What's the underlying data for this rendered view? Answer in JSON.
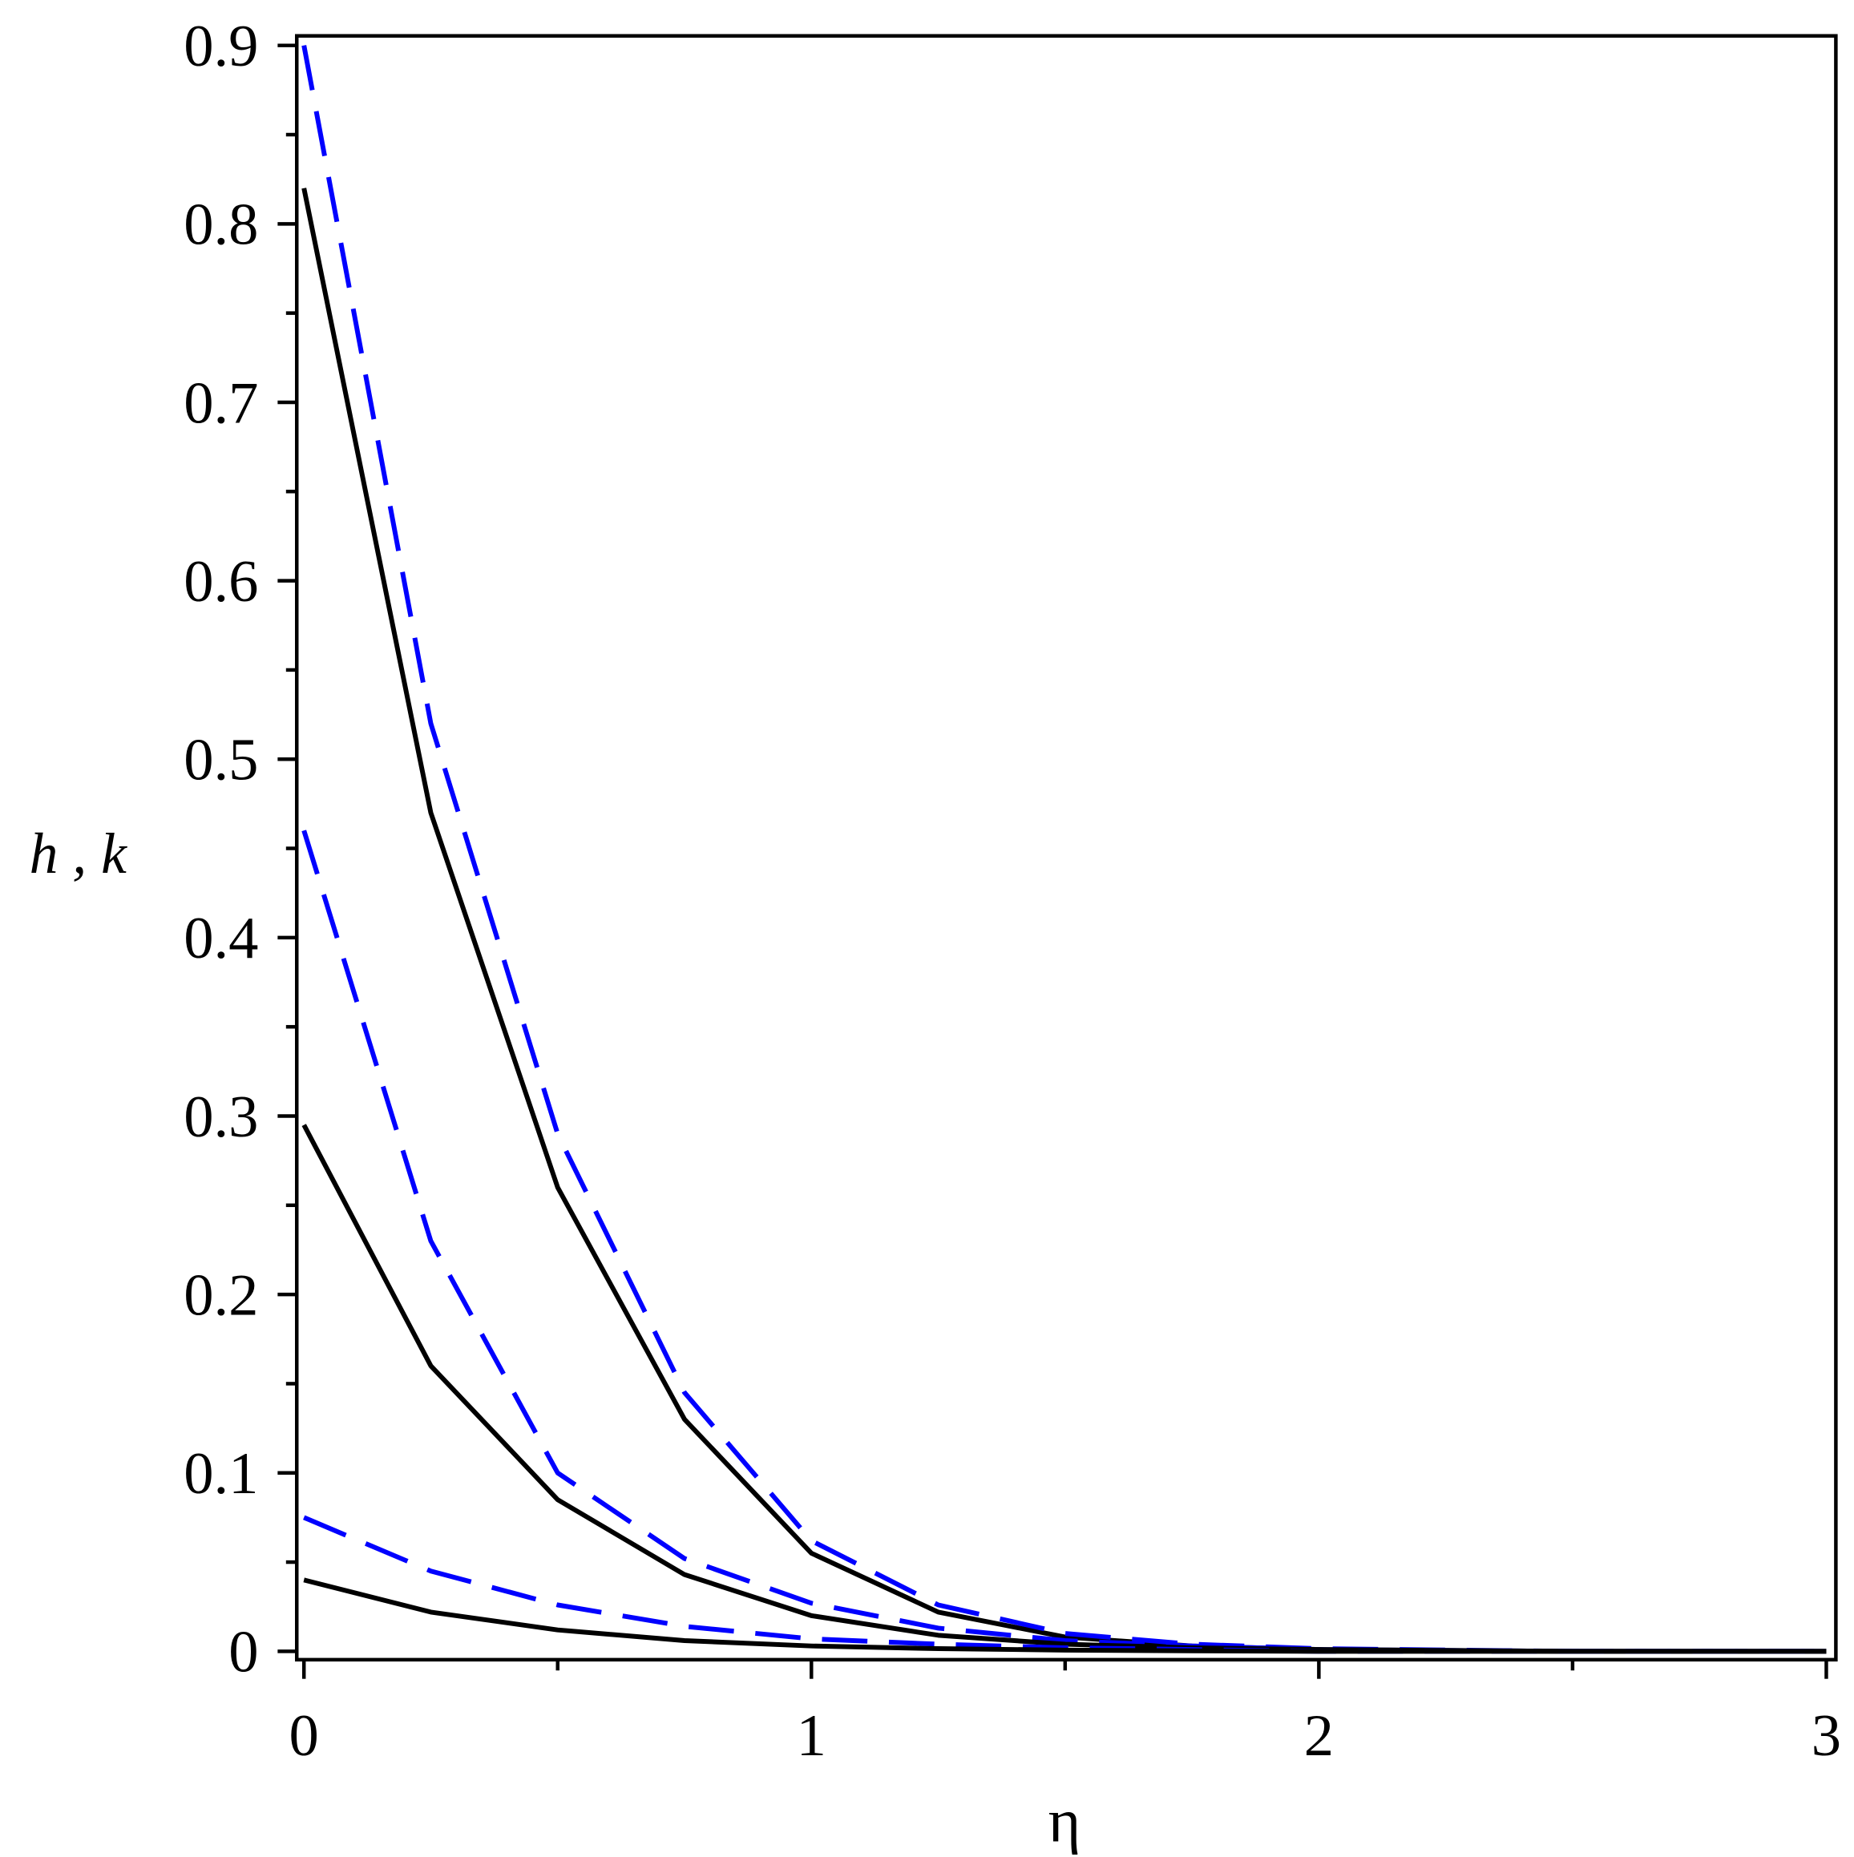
{
  "chart_data": {
    "type": "line",
    "x_label": "η",
    "y_label": "h , k",
    "x": [
      0,
      0.25,
      0.5,
      0.75,
      1,
      1.25,
      1.5,
      1.75,
      2,
      2.5,
      3
    ],
    "series": [
      {
        "color": "#000000",
        "style": "solid",
        "values": [
          0.82,
          0.47,
          0.26,
          0.13,
          0.055,
          0.022,
          0.008,
          0.003,
          0.001,
          0,
          0
        ]
      },
      {
        "color": "#0000ff",
        "style": "dashed",
        "values": [
          0.9,
          0.52,
          0.29,
          0.145,
          0.062,
          0.026,
          0.01,
          0.004,
          0.0015,
          0,
          0
        ]
      },
      {
        "color": "#0000ff",
        "style": "dashed",
        "values": [
          0.46,
          0.23,
          0.1,
          0.052,
          0.027,
          0.013,
          0.006,
          0.003,
          0.001,
          0,
          0
        ]
      },
      {
        "color": "#000000",
        "style": "solid",
        "values": [
          0.295,
          0.16,
          0.085,
          0.043,
          0.02,
          0.009,
          0.004,
          0.002,
          0.001,
          0,
          0
        ]
      },
      {
        "color": "#0000ff",
        "style": "dashed",
        "values": [
          0.075,
          0.045,
          0.026,
          0.014,
          0.007,
          0.004,
          0.002,
          0.001,
          0,
          0,
          0
        ]
      },
      {
        "color": "#000000",
        "style": "solid",
        "values": [
          0.04,
          0.022,
          0.012,
          0.006,
          0.003,
          0.0015,
          0.0007,
          0.0003,
          0,
          0,
          0
        ]
      }
    ],
    "xlim": [
      0,
      3
    ],
    "ylim": [
      0,
      0.9
    ],
    "xticks": [
      0,
      1,
      2,
      3
    ],
    "yticks": [
      0,
      0.1,
      0.2,
      0.3,
      0.4,
      0.5,
      0.6,
      0.7,
      0.8,
      0.9
    ],
    "xminorticks": [
      0.5,
      1.5,
      2.5
    ],
    "yminorticks": [
      0.05,
      0.15,
      0.25,
      0.35,
      0.45,
      0.55,
      0.65,
      0.75,
      0.85
    ]
  }
}
